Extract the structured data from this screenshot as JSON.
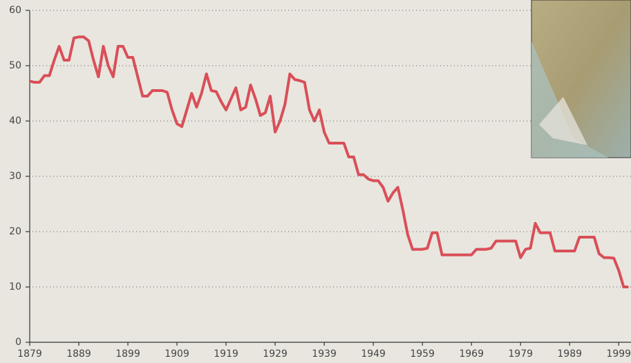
{
  "chart_data": {
    "type": "line",
    "x": [
      1879,
      1880,
      1881,
      1882,
      1883,
      1884,
      1885,
      1886,
      1887,
      1888,
      1889,
      1890,
      1891,
      1892,
      1893,
      1894,
      1895,
      1896,
      1897,
      1898,
      1899,
      1900,
      1901,
      1902,
      1903,
      1904,
      1905,
      1906,
      1907,
      1908,
      1909,
      1910,
      1911,
      1912,
      1913,
      1914,
      1915,
      1916,
      1917,
      1918,
      1919,
      1920,
      1921,
      1922,
      1923,
      1924,
      1925,
      1926,
      1927,
      1928,
      1929,
      1930,
      1931,
      1932,
      1933,
      1934,
      1935,
      1936,
      1937,
      1938,
      1939,
      1940,
      1941,
      1942,
      1943,
      1944,
      1945,
      1946,
      1947,
      1948,
      1949,
      1950,
      1951,
      1952,
      1953,
      1954,
      1955,
      1956,
      1957,
      1958,
      1959,
      1960,
      1961,
      1962,
      1963,
      1964,
      1965,
      1966,
      1967,
      1968,
      1969,
      1970,
      1971,
      1972,
      1973,
      1974,
      1975,
      1976,
      1977,
      1978,
      1979,
      1980,
      1981,
      1982,
      1983,
      1984,
      1985,
      1986,
      1987,
      1988,
      1989,
      1990,
      1991,
      1992,
      1993,
      1994,
      1995,
      1996,
      1997,
      1998,
      1999,
      2000,
      2001
    ],
    "series": [
      {
        "color": "#d94f58",
        "values": [
          47.2,
          47,
          47,
          48.2,
          48.2,
          51,
          53.5,
          51,
          51,
          55,
          55.2,
          55.2,
          54.5,
          51,
          48,
          53.5,
          50,
          48,
          53.5,
          53.5,
          51.5,
          51.5,
          48,
          44.5,
          44.5,
          45.5,
          45.5,
          45.5,
          45.2,
          42,
          39.5,
          39,
          42,
          45,
          42.5,
          45,
          48.5,
          45.5,
          45.3,
          43.5,
          42,
          44,
          46,
          42,
          42.5,
          46.5,
          44,
          41,
          41.5,
          44.5,
          38,
          40,
          43,
          48.5,
          47.5,
          47.3,
          47,
          42,
          40,
          42,
          38,
          36,
          36,
          36,
          36,
          33.5,
          33.5,
          30.3,
          30.3,
          29.5,
          29.2,
          29.2,
          28,
          25.5,
          27,
          28,
          24,
          19.5,
          16.8,
          16.8,
          16.8,
          17,
          19.8,
          19.8,
          15.8,
          15.8,
          15.8,
          15.8,
          15.8,
          15.8,
          15.8,
          16.8,
          16.8,
          16.8,
          17,
          18.3,
          18.3,
          18.3,
          18.3,
          18.3,
          15.3,
          16.8,
          17,
          21.5,
          19.8,
          19.8,
          19.8,
          16.5,
          16.5,
          16.5,
          16.5,
          16.5,
          19,
          19,
          19,
          19,
          16,
          15.3,
          15.3,
          15.2,
          13,
          10,
          10
        ]
      }
    ],
    "xlim": [
      1879,
      2001.5
    ],
    "xticks": [
      1879,
      1889,
      1899,
      1909,
      1919,
      1929,
      1939,
      1949,
      1959,
      1969,
      1979,
      1989,
      1999
    ],
    "ylim": [
      0,
      60
    ],
    "yticks": [
      0,
      10,
      20,
      30,
      40,
      50,
      60
    ],
    "grid": true
  }
}
